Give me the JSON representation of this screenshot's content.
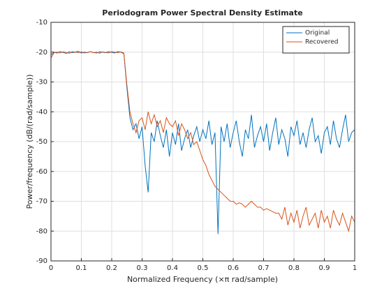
{
  "chart_data": {
    "type": "line",
    "title": "Periodogram Power Spectral Density Estimate",
    "xlabel": "Normalized Frequency  (×π rad/sample)",
    "ylabel": "Power/frequency (dB/(rad/sample))",
    "x": [
      0,
      0.01,
      0.02,
      0.03,
      0.04,
      0.05,
      0.06,
      0.07,
      0.08,
      0.09,
      0.1,
      0.11,
      0.12,
      0.13,
      0.14,
      0.15,
      0.16,
      0.17,
      0.18,
      0.19,
      0.2,
      0.21,
      0.22,
      0.23,
      0.24,
      0.25,
      0.26,
      0.27,
      0.28,
      0.29,
      0.3,
      0.31,
      0.32,
      0.33,
      0.34,
      0.35,
      0.36,
      0.37,
      0.38,
      0.39,
      0.4,
      0.41,
      0.42,
      0.43,
      0.44,
      0.45,
      0.46,
      0.47,
      0.48,
      0.49,
      0.5,
      0.51,
      0.52,
      0.53,
      0.54,
      0.55,
      0.56,
      0.57,
      0.58,
      0.59,
      0.6,
      0.61,
      0.62,
      0.63,
      0.64,
      0.65,
      0.66,
      0.67,
      0.68,
      0.69,
      0.7,
      0.71,
      0.72,
      0.73,
      0.74,
      0.75,
      0.76,
      0.77,
      0.78,
      0.79,
      0.8,
      0.81,
      0.82,
      0.83,
      0.84,
      0.85,
      0.86,
      0.87,
      0.88,
      0.89,
      0.9,
      0.91,
      0.92,
      0.93,
      0.94,
      0.95,
      0.96,
      0.97,
      0.98,
      0.99,
      1
    ],
    "series": [
      {
        "name": "Original",
        "color": "#0072BD",
        "values": [
          -21,
          -20,
          -20.3,
          -19.8,
          -20.1,
          -20.4,
          -19.9,
          -20.2,
          -20,
          -19.7,
          -20.3,
          -20,
          -20.2,
          -19.8,
          -20.1,
          -20.3,
          -19.9,
          -20,
          -20.2,
          -19.8,
          -20.1,
          -20.3,
          -19.8,
          -20,
          -20.5,
          -32,
          -42,
          -46,
          -44,
          -49,
          -45,
          -58,
          -67,
          -47,
          -50,
          -43,
          -48,
          -52,
          -46,
          -55,
          -47,
          -51,
          -44,
          -53,
          -49,
          -46,
          -52,
          -48,
          -45,
          -50,
          -46,
          -49,
          -43,
          -51,
          -47,
          -81,
          -45,
          -50,
          -44,
          -52,
          -47,
          -43,
          -50,
          -55,
          -46,
          -49,
          -41,
          -52,
          -48,
          -45,
          -50,
          -44,
          -53,
          -47,
          -42,
          -51,
          -46,
          -49,
          -55,
          -45,
          -48,
          -43,
          -51,
          -47,
          -52,
          -46,
          -42,
          -50,
          -48,
          -54,
          -47,
          -45,
          -51,
          -43,
          -49,
          -52,
          -46,
          -41,
          -50,
          -47,
          -46
        ]
      },
      {
        "name": "Recovered",
        "color": "#D95319",
        "values": [
          -22,
          -20.2,
          -20,
          -20.3,
          -19.9,
          -20.1,
          -20.4,
          -19.8,
          -20,
          -20.2,
          -19.9,
          -20.3,
          -20.1,
          -19.8,
          -20.2,
          -20,
          -20.4,
          -19.9,
          -20.1,
          -20.3,
          -19.8,
          -20,
          -20.2,
          -19.9,
          -20.3,
          -31,
          -40,
          -44,
          -47,
          -43,
          -42,
          -46,
          -40,
          -44,
          -41,
          -45,
          -43,
          -47,
          -42,
          -44,
          -45,
          -43,
          -48,
          -44,
          -46,
          -49,
          -47,
          -51,
          -50,
          -53,
          -56,
          -58,
          -61,
          -63,
          -65,
          -66,
          -67,
          -68,
          -69,
          -70,
          -70,
          -71,
          -70.5,
          -71,
          -72,
          -71,
          -70,
          -71,
          -72,
          -72,
          -73,
          -72.5,
          -73,
          -73.5,
          -74,
          -74,
          -76,
          -72,
          -78,
          -74,
          -77,
          -73,
          -79,
          -75,
          -72,
          -78,
          -76,
          -74,
          -79,
          -73,
          -77,
          -75,
          -79,
          -73,
          -76,
          -78,
          -74,
          -77,
          -80,
          -75,
          -77
        ]
      }
    ],
    "xlim": [
      0,
      1
    ],
    "xticks": [
      0,
      0.1,
      0.2,
      0.3,
      0.4,
      0.5,
      0.6,
      0.7,
      0.8,
      0.9,
      1
    ],
    "ylim": [
      -90,
      -10
    ],
    "yticks": [
      -90,
      -80,
      -70,
      -60,
      -50,
      -40,
      -30,
      -20,
      -10
    ],
    "grid": true,
    "legend": "northeast"
  }
}
